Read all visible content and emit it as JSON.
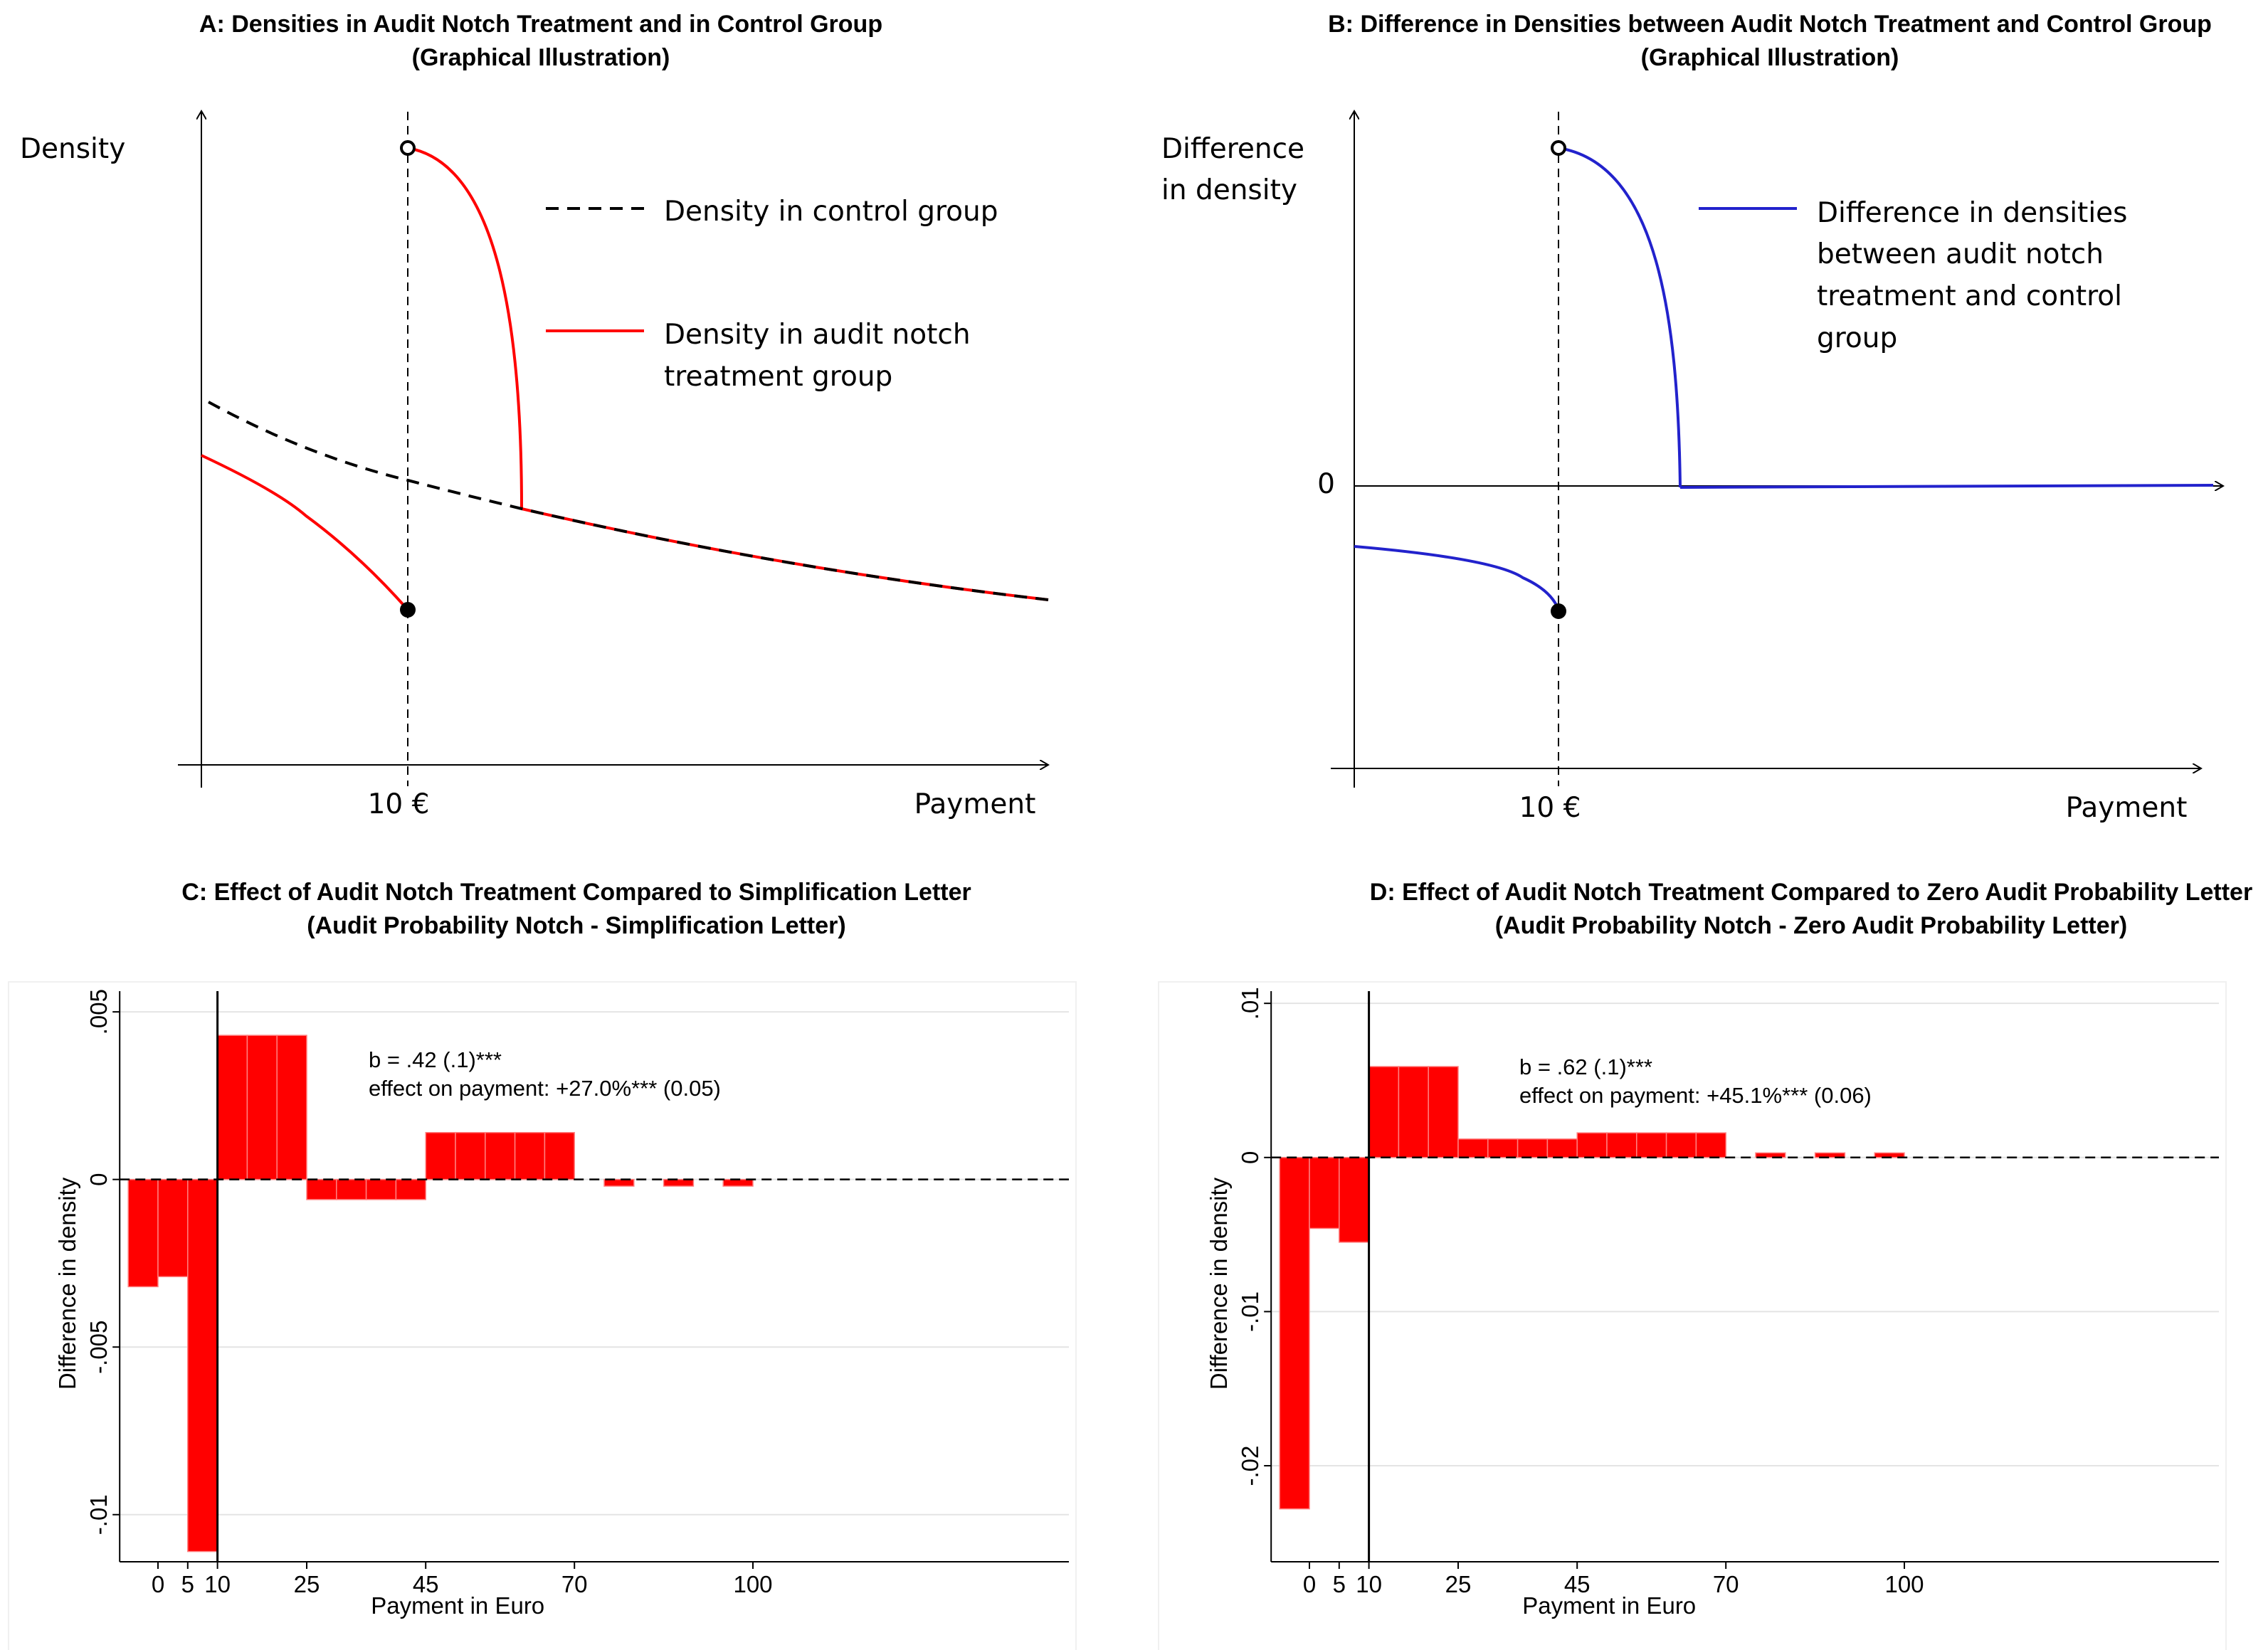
{
  "colors": {
    "red": "#ff0000",
    "blue": "#2222cc",
    "grid": "#e4e4e4",
    "black": "#000000"
  },
  "panels": {
    "A": {
      "title": "A: Densities in Audit Notch Treatment and in Control Group",
      "subtitle": "(Graphical Illustration)",
      "ylabel": "Density",
      "xlabel": "Payment",
      "notch_label": "10 €",
      "legend_control": "Density in control group",
      "legend_treat_1": "Density in audit notch",
      "legend_treat_2": "treatment group"
    },
    "B": {
      "title": "B: Difference in Densities between Audit Notch Treatment and Control Group",
      "subtitle": "(Graphical Illustration)",
      "ylabel_1": "Difference",
      "ylabel_2": "in density",
      "zero_label": "0",
      "xlabel": "Payment",
      "notch_label": "10 €",
      "legend_1": "Difference in densities",
      "legend_2": "between audit notch",
      "legend_3": "treatment and control",
      "legend_4": "group"
    },
    "C": {
      "title": "C: Effect of Audit Notch Treatment Compared to Simplification Letter",
      "subtitle": "(Audit Probability Notch - Simplification Letter)",
      "annotation_1": "b = .42 (.1)***",
      "annotation_2": "effect on payment: +27.0%*** (0.05)"
    },
    "D": {
      "title": "D: Effect of Audit Notch Treatment Compared to Zero Audit Probability Letter",
      "subtitle": "(Audit Probability Notch - Zero Audit Probability Letter)",
      "annotation_1": "b = .62 (.1)***",
      "annotation_2": "effect on payment: +45.1%*** (0.06)"
    }
  },
  "chart_data": [
    {
      "panel": "A",
      "type": "line",
      "title": "A: Densities in Audit Notch Treatment and in Control Group",
      "xlabel": "Payment",
      "ylabel": "Density",
      "notch": 10,
      "series": [
        {
          "name": "Density in control group",
          "style": "dashed"
        },
        {
          "name": "Density in audit notch treatment group",
          "style": "solid"
        }
      ]
    },
    {
      "panel": "B",
      "type": "line",
      "title": "B: Difference in Densities between Audit Notch Treatment and Control Group",
      "xlabel": "Payment",
      "ylabel": "Difference in density",
      "notch": 10,
      "series": [
        {
          "name": "Difference in densities between audit notch treatment and control group"
        }
      ]
    },
    {
      "panel": "C",
      "type": "bar",
      "title": "C: Effect of Audit Notch Treatment Compared to Simplification Letter",
      "subtitle": "(Audit Probability Notch - Simplification Letter)",
      "xlabel": "Payment in Euro",
      "ylabel": "Difference in density",
      "ylim": [
        -0.0113,
        0.0053
      ],
      "yticks": [
        -0.01,
        -0.005,
        0,
        0.005
      ],
      "ytick_labels": [
        "-.01",
        "-.005",
        "0",
        ".005"
      ],
      "xticks": [
        0,
        5,
        10,
        25,
        45,
        70,
        100
      ],
      "xlim": [
        -5,
        140
      ],
      "notch": 10,
      "bins": [
        {
          "x0": -5,
          "x1": 0,
          "value": -0.0032
        },
        {
          "x0": 0,
          "x1": 5,
          "value": -0.0029
        },
        {
          "x0": 5,
          "x1": 10,
          "value": -0.0111
        },
        {
          "x0": 10,
          "x1": 15,
          "value": 0.0043
        },
        {
          "x0": 15,
          "x1": 20,
          "value": 0.0043
        },
        {
          "x0": 20,
          "x1": 25,
          "value": 0.0043
        },
        {
          "x0": 25,
          "x1": 30,
          "value": -0.0006
        },
        {
          "x0": 30,
          "x1": 35,
          "value": -0.0006
        },
        {
          "x0": 35,
          "x1": 40,
          "value": -0.0006
        },
        {
          "x0": 40,
          "x1": 45,
          "value": -0.0006
        },
        {
          "x0": 45,
          "x1": 50,
          "value": 0.0014
        },
        {
          "x0": 50,
          "x1": 55,
          "value": 0.0014
        },
        {
          "x0": 55,
          "x1": 60,
          "value": 0.0014
        },
        {
          "x0": 60,
          "x1": 65,
          "value": 0.0014
        },
        {
          "x0": 65,
          "x1": 70,
          "value": 0.0014
        },
        {
          "x0": 75,
          "x1": 80,
          "value": -0.0002
        },
        {
          "x0": 85,
          "x1": 90,
          "value": -0.0002
        },
        {
          "x0": 95,
          "x1": 100,
          "value": -0.0002
        }
      ],
      "annotation": [
        "b = .42 (.1)***",
        "effect on payment: +27.0%*** (0.05)"
      ]
    },
    {
      "panel": "D",
      "type": "bar",
      "title": "D: Effect of Audit Notch Treatment Compared to Zero Audit Probability Letter",
      "subtitle": "(Audit Probability Notch - Zero Audit Probability Letter)",
      "xlabel": "Payment in Euro",
      "ylabel": "Difference in density",
      "ylim": [
        -0.026,
        0.0101
      ],
      "yticks": [
        -0.02,
        -0.01,
        0,
        0.01
      ],
      "ytick_labels": [
        "-.02",
        "-.01",
        "0",
        ".01"
      ],
      "xticks": [
        0,
        5,
        10,
        25,
        45,
        70,
        100
      ],
      "xlim": [
        -5,
        140
      ],
      "notch": 10,
      "bins": [
        {
          "x0": -5,
          "x1": 0,
          "value": -0.0228
        },
        {
          "x0": 0,
          "x1": 5,
          "value": -0.0046
        },
        {
          "x0": 5,
          "x1": 10,
          "value": -0.0055
        },
        {
          "x0": 10,
          "x1": 15,
          "value": 0.0059
        },
        {
          "x0": 15,
          "x1": 20,
          "value": 0.0059
        },
        {
          "x0": 20,
          "x1": 25,
          "value": 0.0059
        },
        {
          "x0": 25,
          "x1": 30,
          "value": 0.0012
        },
        {
          "x0": 30,
          "x1": 35,
          "value": 0.0012
        },
        {
          "x0": 35,
          "x1": 40,
          "value": 0.0012
        },
        {
          "x0": 40,
          "x1": 45,
          "value": 0.0012
        },
        {
          "x0": 45,
          "x1": 50,
          "value": 0.0016
        },
        {
          "x0": 50,
          "x1": 55,
          "value": 0.0016
        },
        {
          "x0": 55,
          "x1": 60,
          "value": 0.0016
        },
        {
          "x0": 60,
          "x1": 65,
          "value": 0.0016
        },
        {
          "x0": 65,
          "x1": 70,
          "value": 0.0016
        },
        {
          "x0": 75,
          "x1": 80,
          "value": 0.0003
        },
        {
          "x0": 85,
          "x1": 90,
          "value": 0.0003
        },
        {
          "x0": 95,
          "x1": 100,
          "value": 0.0003
        }
      ],
      "annotation": [
        "b = .62 (.1)***",
        "effect on payment: +45.1%*** (0.06)"
      ]
    }
  ]
}
